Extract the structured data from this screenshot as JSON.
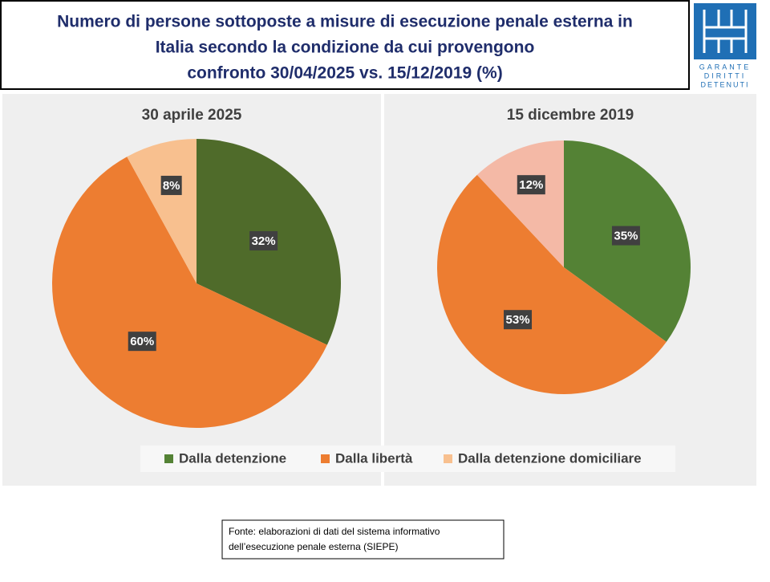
{
  "header": {
    "title_lines": [
      "Numero di persone sottoposte a misure di esecuzione penale esterna in",
      "Italia secondo la condizione da cui provengono",
      "confronto 30/04/2025 vs. 15/12/2019 (%)"
    ],
    "logo_lines": [
      "GARANTE",
      "DIRITTI",
      "DETENUTI"
    ]
  },
  "chart_data": [
    {
      "type": "pie",
      "title": "30 aprile 2025",
      "values": [
        32,
        60,
        8
      ],
      "value_labels": [
        "32%",
        "60%",
        "8%"
      ],
      "colors": [
        "#4f6b2a",
        "#ed7d31",
        "#f8c08f"
      ]
    },
    {
      "type": "pie",
      "title": "15 dicembre 2019",
      "values": [
        35,
        53,
        12
      ],
      "value_labels": [
        "35%",
        "53%",
        "12%"
      ],
      "colors": [
        "#548235",
        "#ed7d31",
        "#f4b9a6"
      ]
    }
  ],
  "legend": {
    "names": [
      "Dalla detenzione",
      "Dalla libertà",
      "Dalla detenzione domiciliare"
    ],
    "colors": [
      "#548235",
      "#ed7d31",
      "#f8c08f"
    ]
  },
  "source": {
    "lines": [
      "Fonte: elaborazioni di dati del sistema informativo",
      "dell’esecuzione penale esterna (SIEPE)"
    ]
  }
}
